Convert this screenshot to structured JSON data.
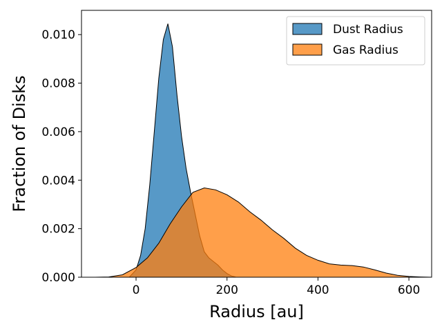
{
  "chart_data": {
    "type": "area",
    "title": "",
    "xlabel": "Radius [au]",
    "ylabel": "Fraction of Disks",
    "xlim": [
      -120,
      650
    ],
    "ylim": [
      0,
      0.011
    ],
    "x_ticks": [
      0,
      200,
      400,
      600
    ],
    "x_tick_labels": [
      "0",
      "200",
      "400",
      "600"
    ],
    "y_ticks": [
      0,
      0.002,
      0.004,
      0.006,
      0.008,
      0.01
    ],
    "y_tick_labels": [
      "0.000",
      "0.002",
      "0.004",
      "0.006",
      "0.008",
      "0.010"
    ],
    "legend_position": "top-right",
    "grid": false,
    "series": [
      {
        "name": "Dust Radius",
        "color": "#1f77b4",
        "x": [
          -15,
          0,
          10,
          20,
          30,
          40,
          50,
          60,
          70,
          80,
          90,
          100,
          110,
          120,
          130,
          140,
          150,
          160,
          170,
          180,
          190,
          200,
          210,
          220
        ],
        "y": [
          0,
          0.0003,
          0.0009,
          0.002,
          0.0038,
          0.006,
          0.0082,
          0.0098,
          0.01045,
          0.0095,
          0.0075,
          0.0058,
          0.0045,
          0.0035,
          0.0026,
          0.0017,
          0.00105,
          0.0008,
          0.00065,
          0.0005,
          0.0003,
          0.00015,
          5e-05,
          0
        ]
      },
      {
        "name": "Gas Radius",
        "color": "#ff7f0e",
        "x": [
          -90,
          -60,
          -30,
          0,
          25,
          50,
          75,
          100,
          125,
          150,
          175,
          200,
          225,
          250,
          275,
          300,
          325,
          350,
          375,
          400,
          425,
          450,
          475,
          500,
          525,
          550,
          575,
          600,
          625,
          650
        ],
        "y": [
          0,
          1e-05,
          0.0001,
          0.0004,
          0.0008,
          0.0014,
          0.0022,
          0.0029,
          0.0035,
          0.00368,
          0.0036,
          0.0034,
          0.0031,
          0.0027,
          0.00235,
          0.00195,
          0.0016,
          0.0012,
          0.0009,
          0.0007,
          0.00055,
          0.0005,
          0.00048,
          0.00042,
          0.0003,
          0.00017,
          8e-05,
          3e-05,
          1e-05,
          0
        ]
      }
    ]
  }
}
